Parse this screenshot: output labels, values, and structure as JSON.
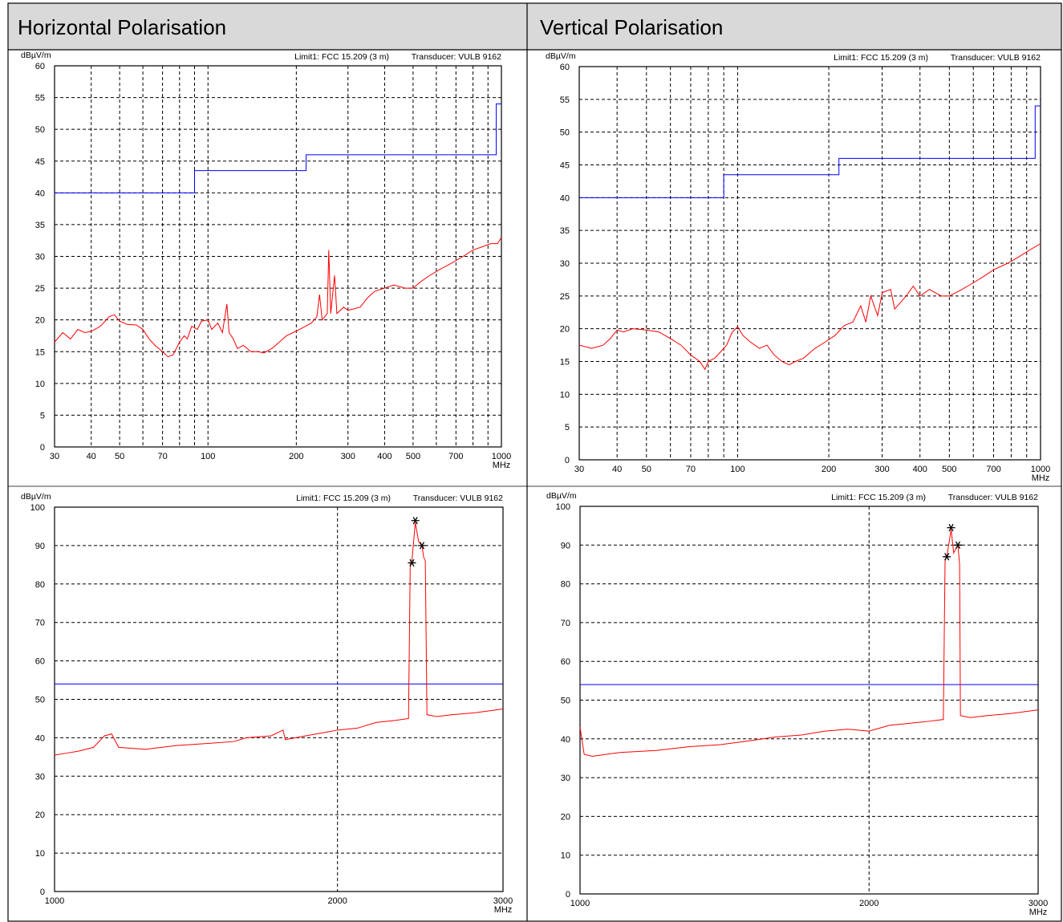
{
  "headers": [
    "Horizontal Polarisation",
    "Vertical Polarisation"
  ],
  "chart_data": [
    {
      "type": "line",
      "ylabel": "dBµV/m",
      "xlabel": "MHz",
      "annotations": [
        "Limit1: FCC 15.209 (3 m)",
        "Transducer: VULB 9162"
      ],
      "xlog": true,
      "xlim": [
        30,
        1000
      ],
      "xticks": [
        30,
        40,
        50,
        70,
        100,
        200,
        300,
        400,
        500,
        700,
        1000
      ],
      "xgrid": [
        60,
        80,
        90,
        600,
        800,
        900
      ],
      "ylim": [
        0,
        60
      ],
      "yticks": [
        0,
        5,
        10,
        15,
        20,
        25,
        30,
        35,
        40,
        45,
        50,
        55,
        60
      ],
      "grid": true,
      "series": [
        {
          "color": "#0000ff",
          "style": "line",
          "x": [
            30,
            90,
            90,
            216,
            216,
            960,
            960,
            1000
          ],
          "values": [
            40,
            40,
            43.5,
            43.5,
            46,
            46,
            54,
            54
          ]
        },
        {
          "color": "#ff0000",
          "style": "line",
          "x": [
            30,
            32,
            34,
            36,
            38,
            40,
            43,
            46,
            48,
            50,
            53,
            57,
            60,
            63,
            66,
            70,
            73,
            76,
            78,
            80,
            83,
            85,
            88,
            92,
            95,
            100,
            103,
            108,
            112,
            116,
            118,
            122,
            126,
            132,
            140,
            148,
            155,
            165,
            175,
            185,
            195,
            205,
            215,
            225,
            235,
            240,
            245,
            255,
            258,
            262,
            270,
            275,
            290,
            300,
            330,
            350,
            370,
            400,
            430,
            470,
            500,
            530,
            570,
            620,
            680,
            740,
            800,
            860,
            920,
            970,
            1000
          ],
          "values": [
            16.5,
            18,
            17,
            18.5,
            18,
            18.2,
            19,
            20.5,
            20.8,
            19.8,
            19.3,
            19.2,
            18.5,
            17,
            16,
            15,
            14.2,
            14.5,
            15.5,
            16.5,
            17.5,
            17,
            19,
            18.5,
            19.8,
            20,
            18.5,
            19.5,
            18,
            22.5,
            18,
            17,
            15.5,
            16,
            15,
            15,
            14.8,
            15.5,
            16.5,
            17.5,
            18,
            18.5,
            19,
            19.5,
            20.5,
            24,
            20,
            21,
            31,
            21,
            27,
            21,
            22,
            21.5,
            22,
            23.5,
            24.5,
            25,
            25.5,
            25,
            25,
            26,
            27,
            28,
            29,
            30,
            31,
            31.5,
            32,
            32,
            33
          ]
        }
      ]
    },
    {
      "type": "line",
      "ylabel": "dBµV/m",
      "xlabel": "MHz",
      "annotations": [
        "Limit1: FCC 15.209 (3 m)",
        "Transducer: VULB 9162"
      ],
      "xlog": true,
      "xlim": [
        30,
        1000
      ],
      "xticks": [
        30,
        40,
        50,
        70,
        100,
        200,
        300,
        400,
        500,
        700,
        1000
      ],
      "xgrid": [
        60,
        80,
        90,
        600,
        800,
        900
      ],
      "ylim": [
        0,
        60
      ],
      "yticks": [
        0,
        5,
        10,
        15,
        20,
        25,
        30,
        35,
        40,
        45,
        50,
        55,
        60
      ],
      "grid": true,
      "series": [
        {
          "color": "#0000ff",
          "style": "line",
          "x": [
            30,
            90,
            90,
            216,
            216,
            960,
            960,
            1000
          ],
          "values": [
            40,
            40,
            43.5,
            43.5,
            46,
            46,
            54,
            54
          ]
        },
        {
          "color": "#ff0000",
          "style": "line",
          "x": [
            30,
            33,
            36,
            38,
            40,
            42,
            45,
            50,
            55,
            60,
            65,
            70,
            75,
            78,
            80,
            84,
            88,
            92,
            96,
            100,
            104,
            110,
            118,
            125,
            132,
            140,
            148,
            155,
            165,
            180,
            195,
            210,
            225,
            240,
            255,
            265,
            275,
            290,
            300,
            320,
            330,
            360,
            380,
            400,
            430,
            470,
            500,
            550,
            600,
            650,
            700,
            780,
            850,
            920,
            1000
          ],
          "values": [
            17.5,
            17,
            17.5,
            18.5,
            19.8,
            19.5,
            20,
            19.8,
            19.5,
            18.5,
            17.5,
            16,
            15,
            13.8,
            15,
            15.5,
            16.5,
            17.5,
            19.5,
            20.3,
            19,
            18,
            17,
            17.5,
            16,
            15,
            14.5,
            15,
            15.5,
            17,
            18,
            19,
            20.5,
            21,
            23.5,
            21,
            25,
            22,
            25.5,
            26,
            23,
            25,
            26.5,
            25,
            26,
            25,
            25,
            26,
            27,
            28,
            29,
            30,
            31,
            32,
            33
          ]
        }
      ]
    },
    {
      "type": "line",
      "ylabel": "dBµV/m",
      "xlabel": "MHz",
      "annotations": [
        "Limit1: FCC 15.209 (3 m)",
        "Transducer: VULB 9162"
      ],
      "xlog": true,
      "xlim": [
        1000,
        3000
      ],
      "xticks": [
        1000,
        2000,
        3000
      ],
      "xgrid": [],
      "ylim": [
        0,
        100
      ],
      "yticks": [
        0,
        10,
        20,
        30,
        40,
        50,
        60,
        70,
        80,
        90,
        100
      ],
      "grid": true,
      "series": [
        {
          "color": "#0000ff",
          "style": "line",
          "x": [
            1000,
            3000
          ],
          "values": [
            54,
            54
          ]
        },
        {
          "color": "#ff0000",
          "style": "line",
          "x": [
            1000,
            1030,
            1060,
            1100,
            1130,
            1150,
            1170,
            1250,
            1350,
            1450,
            1550,
            1600,
            1700,
            1750,
            1760,
            1850,
            1950,
            2000,
            2100,
            2200,
            2300,
            2380,
            2390,
            2400,
            2420,
            2440,
            2460,
            2470,
            2480,
            2490,
            2550,
            2650,
            2800,
            2900,
            3000
          ],
          "values": [
            35.5,
            36,
            36.5,
            37.5,
            40.5,
            41,
            37.5,
            37,
            38,
            38.5,
            39,
            40,
            40.5,
            42,
            39.5,
            40.5,
            41.5,
            42,
            42.5,
            44,
            44.5,
            45,
            85,
            86,
            96,
            91,
            90,
            87,
            86,
            46,
            45.5,
            46,
            46.5,
            47,
            47.5
          ]
        },
        {
          "color": "#000000",
          "style": "asterisk",
          "x": [
            2400,
            2420,
            2460
          ],
          "values": [
            85.5,
            96.5,
            90
          ]
        }
      ]
    },
    {
      "type": "line",
      "ylabel": "dBµV/m",
      "xlabel": "MHz",
      "annotations": [
        "Limit1: FCC 15.209 (3 m)",
        "Transducer: VULB 9162"
      ],
      "xlog": true,
      "xlim": [
        1000,
        3000
      ],
      "xticks": [
        1000,
        2000,
        3000
      ],
      "xgrid": [],
      "ylim": [
        0,
        100
      ],
      "yticks": [
        0,
        10,
        20,
        30,
        40,
        50,
        60,
        70,
        80,
        90,
        100
      ],
      "grid": true,
      "series": [
        {
          "color": "#0000ff",
          "style": "line",
          "x": [
            1000,
            3000
          ],
          "values": [
            54,
            54
          ]
        },
        {
          "color": "#ff0000",
          "style": "line",
          "x": [
            1000,
            1010,
            1030,
            1100,
            1200,
            1300,
            1400,
            1500,
            1600,
            1700,
            1800,
            1900,
            2000,
            2100,
            2200,
            2300,
            2390,
            2400,
            2410,
            2435,
            2450,
            2475,
            2485,
            2490,
            2550,
            2650,
            2800,
            2900,
            3000
          ],
          "values": [
            43,
            36,
            35.5,
            36.5,
            37,
            38,
            38.5,
            39.5,
            40.5,
            41,
            42,
            42.5,
            42,
            43.5,
            44,
            44.5,
            45,
            86,
            87,
            94,
            88,
            90,
            85,
            46,
            45.5,
            46,
            46.5,
            47,
            47.5
          ]
        },
        {
          "color": "#000000",
          "style": "asterisk",
          "x": [
            2410,
            2435,
            2475
          ],
          "values": [
            87,
            94.5,
            90
          ]
        }
      ]
    }
  ]
}
